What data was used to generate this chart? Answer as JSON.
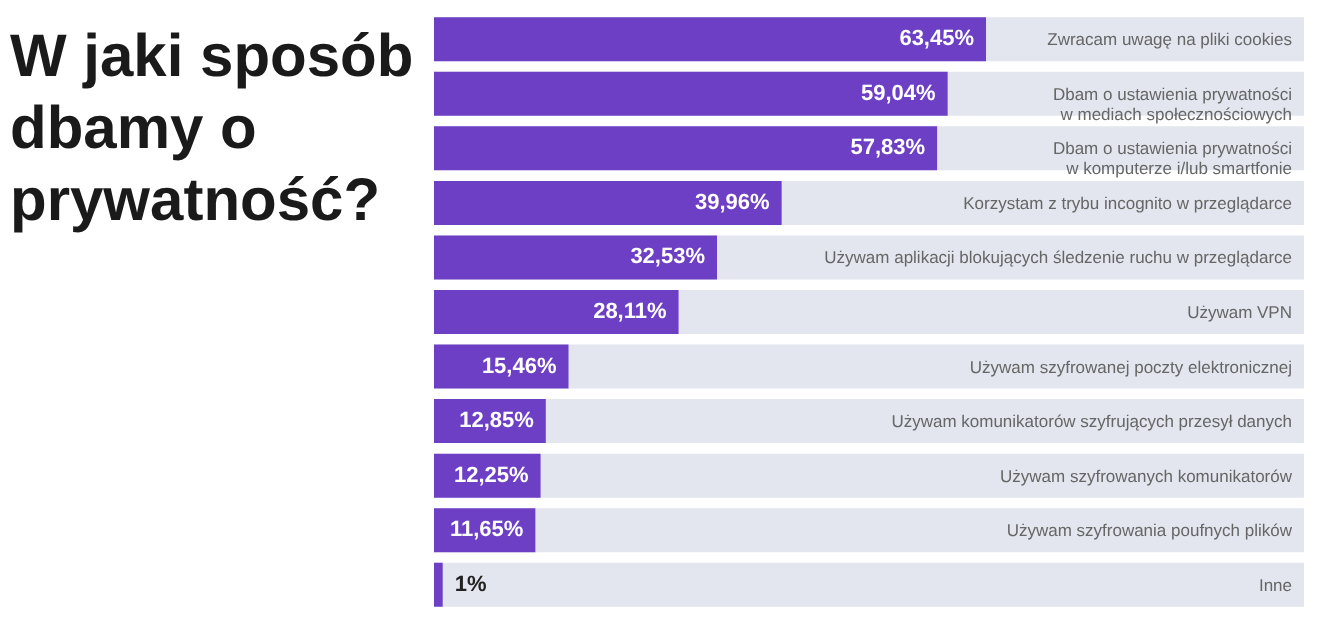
{
  "chart_data": {
    "type": "bar",
    "orientation": "horizontal",
    "title": "W jaki sposób\ndbamy o\nprywatność?",
    "categories": [
      "Zwracam uwagę na pliki cookies",
      "Dbam o ustawienia prywatności\nw mediach społecznościowych",
      "Dbam o ustawienia prywatności\nw komputerze i/lub smartfonie",
      "Korzystam z trybu incognito w przeglądarce",
      "Używam aplikacji blokujących śledzenie ruchu w przeglądarce",
      "Używam VPN",
      "Używam szyfrowanej poczty elektronicznej",
      "Używam komunikatorów szyfrujących przesył danych",
      "Używam szyfrowanych komunikatorów",
      "Używam szyfrowania poufnych plików",
      "Inne"
    ],
    "values": [
      63.45,
      59.04,
      57.83,
      39.96,
      32.53,
      28.11,
      15.46,
      12.85,
      12.25,
      11.65,
      1
    ],
    "value_labels": [
      "63,45%",
      "59,04%",
      "57,83%",
      "39,96%",
      "32,53%",
      "28,11%",
      "15,46%",
      "12,85%",
      "12,25%",
      "11,65%",
      "1%"
    ],
    "color": "#6c3fc5",
    "xlim": [
      0,
      100
    ],
    "tick_labels": false
  }
}
